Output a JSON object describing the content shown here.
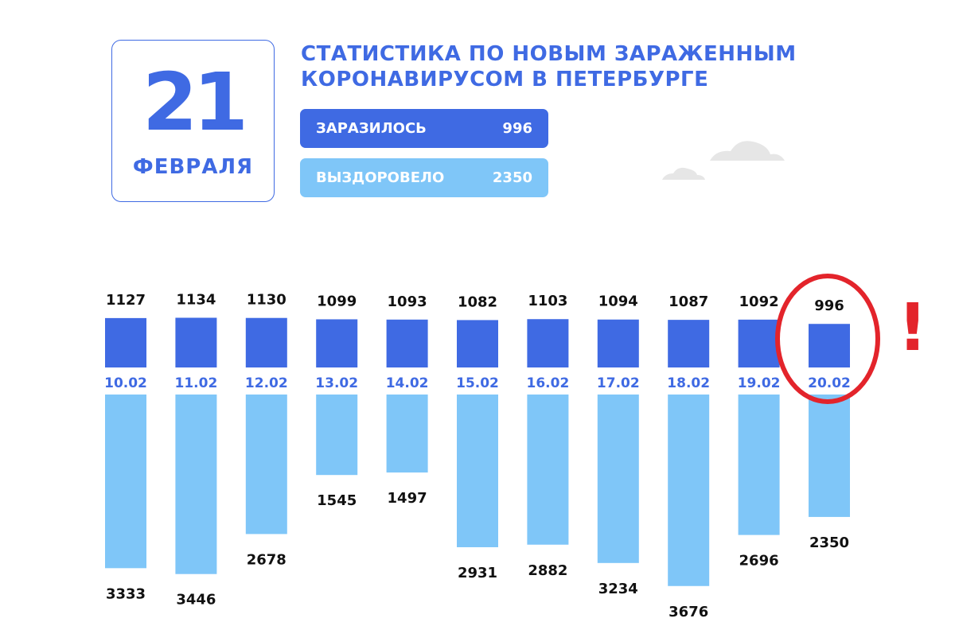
{
  "header": {
    "day": "21",
    "month": "ФЕВРАЛЯ",
    "title_line1": "СТАТИСТИКА ПО НОВЫМ ЗАРАЖЕННЫМ",
    "title_line2": "КОРОНАВИРУСОМ В ПЕТЕРБУРГЕ"
  },
  "summary": {
    "infected_label": "ЗАРАЗИЛОСЬ",
    "infected_value": "996",
    "recovered_label": "ВЫЗДОРОВЕЛО",
    "recovered_value": "2350"
  },
  "annotation": {
    "mark": "!",
    "highlight_date": "20.02"
  },
  "colors": {
    "infected": "#3f6ae3",
    "recovered": "#7fc6f8",
    "date_label": "#3f6ae3",
    "highlight": "#e3242b",
    "cloud": "#e6e6e6"
  },
  "chart_data": {
    "type": "bar",
    "categories": [
      "10.02",
      "11.02",
      "12.02",
      "13.02",
      "14.02",
      "15.02",
      "16.02",
      "17.02",
      "18.02",
      "19.02",
      "20.02"
    ],
    "series": [
      {
        "values": [
          1127,
          1134,
          1130,
          1099,
          1093,
          1082,
          1103,
          1094,
          1087,
          1092,
          996
        ]
      },
      {
        "values": [
          3333,
          3446,
          2678,
          1545,
          1497,
          2931,
          2882,
          3234,
          3676,
          2696,
          2350
        ]
      }
    ],
    "legend": "none",
    "grid": false
  }
}
